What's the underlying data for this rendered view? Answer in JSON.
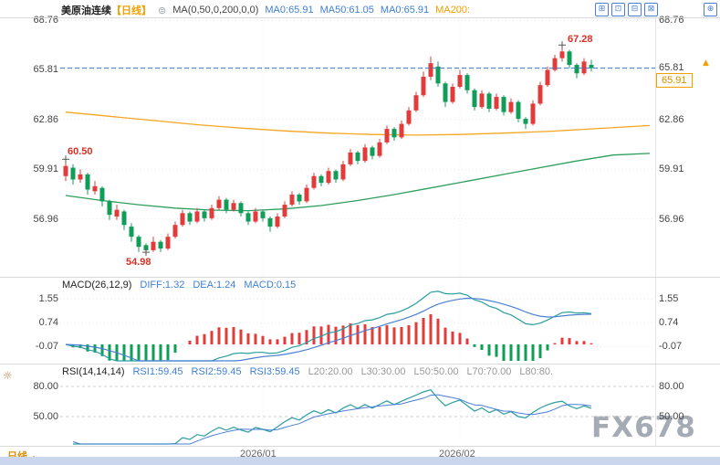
{
  "header": {
    "symbol": "美原油连续",
    "period": "【日线】",
    "ma_settings": "MA(0,50,0,200,0,0)",
    "ma0a": "MA0:65.91",
    "ma50": "MA50:61.05",
    "ma0b": "MA0:65.91",
    "ma200": "MA200:"
  },
  "toolbar": {
    "icons": [
      {
        "name": "add-panel-icon",
        "glyph": "⊞"
      },
      {
        "name": "grid-layout-icon",
        "glyph": "⊡"
      },
      {
        "name": "compress-icon",
        "glyph": "⊟"
      },
      {
        "name": "close-panel-icon",
        "glyph": "⊠"
      },
      {
        "name": "fullscreen-icon",
        "glyph": "⊕"
      }
    ],
    "settings_icon": "⊜"
  },
  "axis_main": [
    "68.76",
    "65.81",
    "62.86",
    "59.91",
    "56.96"
  ],
  "axis_macd": [
    "1.55",
    "0.74",
    "-0.07"
  ],
  "axis_rsi": [
    "80.00",
    "50.00"
  ],
  "price_tag": "65.91",
  "annotations": {
    "high1": "60.50",
    "low1": "54.98",
    "high2": "67.28"
  },
  "macd_header": {
    "name": "MACD(26,12,9)",
    "diff": "DIFF:1.32",
    "dea": "DEA:1.24",
    "macd": "MACD:0.15"
  },
  "rsi_header": {
    "name": "RSI(14,14,14)",
    "rsi1": "RSI1:59.45",
    "rsi2": "RSI2:59.45",
    "rsi3": "RSI3:59.45",
    "l20": "L20:20.00",
    "l30": "L30:30.00",
    "l50": "L50:50.00",
    "l70": "L70:70.00",
    "l80": "L80:80."
  },
  "bottom": {
    "period_tab": "日线",
    "tab_arrow": "▲",
    "x1": "2026/01",
    "x2": "2026/02"
  },
  "watermark": "FX678",
  "colors": {
    "up": "#e23b3b",
    "down": "#0f9d58",
    "ma_fast": "#f5a623",
    "ma_slow": "#2e9e5b",
    "diff_line": "#2a9d9f",
    "dea_line": "#4a7fd4",
    "rsi_line": "#2a9d9f",
    "rsi_line2": "#4a7fd4",
    "last_price_line": "#4a7fd4",
    "grid": "#e2e2e2",
    "accent_orange": "#f0a000",
    "accent_blue": "#4a7fd4"
  },
  "chart_data": {
    "type": "candlestick",
    "title": "美原油连续 日线",
    "ylim": [
      53.5,
      69.0
    ],
    "y_ticks": [
      68.76,
      65.81,
      62.86,
      59.91,
      56.96
    ],
    "x_tick_labels": [
      "2026/01",
      "2026/02"
    ],
    "x_tick_idx": [
      27,
      54
    ],
    "last_price": 65.91,
    "markers": [
      {
        "i": 0,
        "p": 60.5,
        "label": "60.50"
      },
      {
        "i": 11,
        "p": 54.98,
        "label": "54.98"
      },
      {
        "i": 68,
        "p": 67.28,
        "label": "67.28"
      }
    ],
    "candles": [
      [
        59.5,
        60.5,
        59.2,
        60.1
      ],
      [
        60.0,
        60.2,
        59.0,
        59.3
      ],
      [
        59.3,
        59.9,
        59.1,
        59.6
      ],
      [
        59.6,
        59.7,
        58.4,
        58.7
      ],
      [
        58.6,
        59.2,
        58.4,
        58.9
      ],
      [
        58.8,
        58.9,
        57.7,
        58.0
      ],
      [
        58.0,
        58.1,
        56.9,
        57.2
      ],
      [
        57.1,
        57.8,
        56.9,
        57.5
      ],
      [
        57.4,
        57.5,
        56.3,
        56.6
      ],
      [
        56.5,
        56.7,
        55.6,
        55.9
      ],
      [
        55.9,
        56.0,
        55.0,
        55.3
      ],
      [
        55.4,
        55.5,
        54.98,
        55.1
      ],
      [
        55.1,
        55.9,
        55.0,
        55.6
      ],
      [
        55.6,
        55.7,
        55.0,
        55.2
      ],
      [
        55.2,
        56.1,
        55.1,
        55.9
      ],
      [
        55.9,
        56.8,
        55.8,
        56.6
      ],
      [
        56.6,
        57.5,
        56.5,
        57.3
      ],
      [
        57.3,
        57.4,
        56.6,
        56.8
      ],
      [
        56.8,
        57.6,
        56.7,
        57.4
      ],
      [
        57.4,
        57.5,
        56.8,
        57.0
      ],
      [
        57.0,
        57.8,
        56.9,
        57.6
      ],
      [
        57.6,
        58.3,
        57.5,
        58.1
      ],
      [
        58.1,
        58.2,
        57.3,
        57.5
      ],
      [
        57.5,
        58.1,
        57.4,
        57.9
      ],
      [
        57.9,
        58.0,
        57.1,
        57.3
      ],
      [
        57.3,
        57.4,
        56.6,
        56.8
      ],
      [
        56.8,
        57.6,
        56.7,
        57.4
      ],
      [
        57.4,
        57.5,
        56.8,
        57.0
      ],
      [
        57.0,
        57.1,
        56.2,
        56.5
      ],
      [
        56.5,
        57.3,
        56.4,
        57.1
      ],
      [
        57.1,
        58.0,
        57.0,
        57.8
      ],
      [
        57.8,
        58.6,
        57.7,
        58.4
      ],
      [
        58.4,
        58.5,
        57.8,
        58.0
      ],
      [
        58.0,
        59.0,
        57.9,
        58.8
      ],
      [
        58.8,
        59.7,
        58.7,
        59.5
      ],
      [
        59.5,
        59.6,
        58.9,
        59.1
      ],
      [
        59.1,
        60.0,
        59.0,
        59.8
      ],
      [
        59.8,
        59.9,
        59.1,
        59.3
      ],
      [
        59.3,
        60.4,
        59.2,
        60.2
      ],
      [
        60.2,
        61.1,
        60.1,
        60.9
      ],
      [
        60.9,
        61.0,
        60.2,
        60.4
      ],
      [
        60.4,
        61.4,
        60.3,
        61.2
      ],
      [
        61.2,
        61.3,
        60.5,
        60.7
      ],
      [
        60.7,
        61.7,
        60.6,
        61.5
      ],
      [
        61.5,
        62.5,
        61.4,
        62.3
      ],
      [
        62.3,
        62.4,
        61.6,
        61.8
      ],
      [
        61.8,
        62.8,
        61.7,
        62.6
      ],
      [
        62.6,
        63.6,
        62.5,
        63.4
      ],
      [
        63.4,
        64.5,
        63.3,
        64.3
      ],
      [
        64.3,
        65.7,
        64.2,
        65.4
      ],
      [
        65.4,
        66.6,
        65.2,
        66.2
      ],
      [
        66.0,
        66.3,
        64.8,
        65.0
      ],
      [
        65.0,
        65.1,
        63.6,
        63.9
      ],
      [
        63.9,
        65.0,
        63.8,
        64.8
      ],
      [
        64.8,
        65.8,
        64.7,
        65.5
      ],
      [
        65.5,
        65.6,
        64.4,
        64.6
      ],
      [
        64.6,
        64.7,
        63.4,
        63.6
      ],
      [
        63.6,
        64.6,
        63.5,
        64.4
      ],
      [
        64.4,
        64.5,
        63.3,
        63.5
      ],
      [
        63.5,
        64.4,
        63.4,
        64.2
      ],
      [
        64.2,
        64.3,
        63.1,
        63.3
      ],
      [
        63.3,
        64.1,
        63.2,
        63.9
      ],
      [
        63.9,
        64.0,
        62.7,
        62.9
      ],
      [
        62.9,
        63.0,
        62.3,
        62.6
      ],
      [
        62.6,
        64.0,
        62.5,
        63.8
      ],
      [
        63.8,
        65.1,
        63.7,
        64.9
      ],
      [
        64.9,
        66.0,
        64.8,
        65.8
      ],
      [
        65.8,
        66.7,
        65.7,
        66.5
      ],
      [
        66.5,
        67.28,
        66.3,
        66.9
      ],
      [
        66.9,
        67.0,
        65.9,
        66.1
      ],
      [
        66.1,
        66.2,
        65.3,
        65.6
      ],
      [
        65.6,
        66.5,
        65.5,
        66.3
      ],
      [
        66.1,
        66.4,
        65.7,
        65.91
      ]
    ],
    "ma_fast_points": [
      [
        0,
        63.3
      ],
      [
        6,
        63.05
      ],
      [
        12,
        62.8
      ],
      [
        18,
        62.55
      ],
      [
        24,
        62.35
      ],
      [
        30,
        62.18
      ],
      [
        36,
        62.05
      ],
      [
        42,
        61.97
      ],
      [
        48,
        61.93
      ],
      [
        54,
        61.97
      ],
      [
        60,
        62.05
      ],
      [
        66,
        62.15
      ],
      [
        72,
        62.3
      ],
      [
        80,
        62.5
      ]
    ],
    "ma_slow_points": [
      [
        0,
        58.35
      ],
      [
        5,
        58.05
      ],
      [
        10,
        57.8
      ],
      [
        15,
        57.6
      ],
      [
        20,
        57.48
      ],
      [
        25,
        57.45
      ],
      [
        30,
        57.55
      ],
      [
        35,
        57.75
      ],
      [
        40,
        58.05
      ],
      [
        45,
        58.4
      ],
      [
        50,
        58.8
      ],
      [
        55,
        59.2
      ],
      [
        60,
        59.6
      ],
      [
        65,
        60.0
      ],
      [
        70,
        60.4
      ],
      [
        75,
        60.75
      ],
      [
        80,
        60.85
      ]
    ],
    "indicators": {
      "macd": {
        "params": [
          26,
          12,
          9
        ],
        "diff": 1.32,
        "dea": 1.24,
        "macd": 0.15,
        "y_ticks": [
          1.55,
          0.74,
          -0.07
        ]
      },
      "rsi": {
        "params": [
          14,
          14,
          14
        ],
        "rsi1": 59.45,
        "rsi2": 59.45,
        "rsi3": 59.45,
        "y_ticks": [
          80,
          50
        ],
        "levels": [
          20,
          30,
          50,
          70,
          80
        ]
      }
    }
  }
}
